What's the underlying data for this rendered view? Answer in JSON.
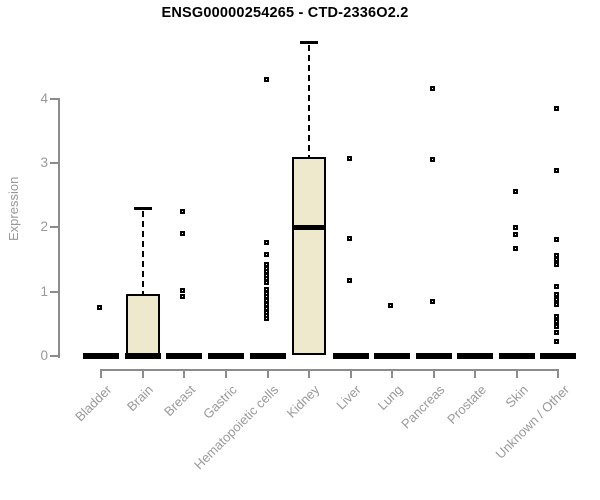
{
  "chart_data": {
    "type": "boxplot",
    "title": "ENSG00000254265 - CTD-2336O2.2",
    "xlabel": "",
    "ylabel": "Expression",
    "yticks": [
      0,
      1,
      2,
      3,
      4
    ],
    "ylim": [
      0,
      4.9
    ],
    "grid": false,
    "legend": null,
    "categories": [
      "Bladder",
      "Brain",
      "Breast",
      "Gastric",
      "Hematopoietic cells",
      "Kidney",
      "Liver",
      "Lung",
      "Pancreas",
      "Prostate",
      "Skin",
      "Unknown / Other"
    ],
    "boxes": [
      {
        "category": "Bladder",
        "q1": 0,
        "median": 0,
        "q3": 0,
        "whisker_low": 0,
        "whisker_high": 0,
        "outliers": [
          0.74
        ]
      },
      {
        "category": "Brain",
        "q1": 0,
        "median": 0,
        "q3": 0.97,
        "whisker_low": 0,
        "whisker_high": 2.3,
        "outliers": []
      },
      {
        "category": "Breast",
        "q1": 0,
        "median": 0,
        "q3": 0,
        "whisker_low": 0,
        "whisker_high": 0,
        "outliers": [
          2.24,
          1.89,
          1.01,
          0.92
        ]
      },
      {
        "category": "Gastric",
        "q1": 0,
        "median": 0,
        "q3": 0,
        "whisker_low": 0,
        "whisker_high": 0,
        "outliers": []
      },
      {
        "category": "Hematopoietic cells",
        "q1": 0,
        "median": 0,
        "q3": 0,
        "whisker_low": 0,
        "whisker_high": 0,
        "outliers": [
          4.3,
          1.75,
          1.57,
          1.42,
          1.36,
          1.3,
          1.24,
          1.19,
          1.13,
          1.03,
          0.97,
          0.91,
          0.85,
          0.79,
          0.73,
          0.67,
          0.62,
          0.57
        ]
      },
      {
        "category": "Kidney",
        "q1": 0.02,
        "median": 2.0,
        "q3": 3.1,
        "whisker_low": 0,
        "whisker_high": 4.88,
        "outliers": []
      },
      {
        "category": "Liver",
        "q1": 0,
        "median": 0,
        "q3": 0,
        "whisker_low": 0,
        "whisker_high": 0,
        "outliers": [
          3.07,
          1.82,
          1.16
        ]
      },
      {
        "category": "Lung",
        "q1": 0,
        "median": 0,
        "q3": 0,
        "whisker_low": 0,
        "whisker_high": 0,
        "outliers": [
          0.78
        ]
      },
      {
        "category": "Pancreas",
        "q1": 0,
        "median": 0,
        "q3": 0,
        "whisker_low": 0,
        "whisker_high": 0,
        "outliers": [
          4.15,
          3.05,
          0.84
        ]
      },
      {
        "category": "Prostate",
        "q1": 0,
        "median": 0,
        "q3": 0,
        "whisker_low": 0,
        "whisker_high": 0,
        "outliers": []
      },
      {
        "category": "Skin",
        "q1": 0,
        "median": 0,
        "q3": 0,
        "whisker_low": 0,
        "whisker_high": 0,
        "outliers": [
          2.55,
          1.99,
          1.88,
          1.66
        ]
      },
      {
        "category": "Unknown / Other",
        "q1": 0,
        "median": 0,
        "q3": 0,
        "whisker_low": 0,
        "whisker_high": 0,
        "outliers": [
          3.84,
          2.88,
          1.8,
          1.56,
          1.49,
          1.42,
          1.07,
          0.95,
          0.87,
          0.79,
          0.61,
          0.53,
          0.45,
          0.35,
          0.22
        ]
      }
    ],
    "colors": {
      "box_fill": "#EEE8CD",
      "box_border": "#000000",
      "median": "#000000",
      "axis": "#8C8C8C",
      "tick_label": "#999999",
      "title": "#000000",
      "background": "#FFFFFF"
    }
  }
}
